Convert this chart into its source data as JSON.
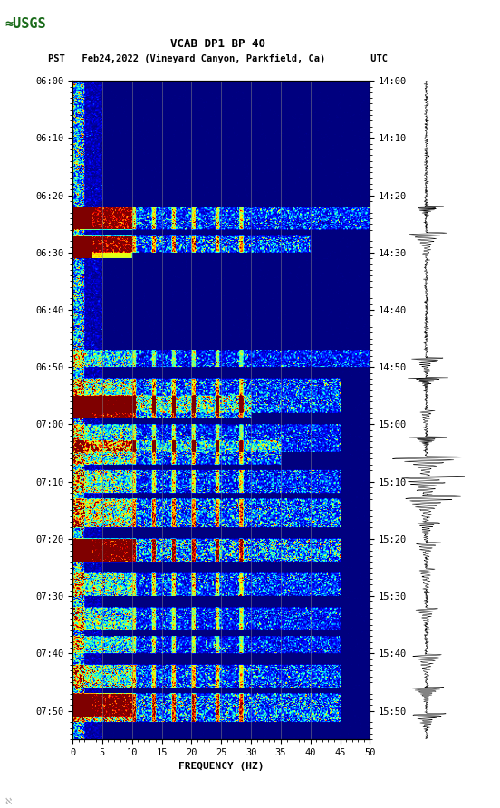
{
  "title_line1": "VCAB DP1 BP 40",
  "title_line2": "PST   Feb24,2022 (Vineyard Canyon, Parkfield, Ca)        UTC",
  "xlabel": "FREQUENCY (HZ)",
  "freq_min": 0,
  "freq_max": 50,
  "pst_ticks": [
    "06:00",
    "06:10",
    "06:20",
    "06:30",
    "06:40",
    "06:50",
    "07:00",
    "07:10",
    "07:20",
    "07:30",
    "07:40",
    "07:50"
  ],
  "utc_ticks": [
    "14:00",
    "14:10",
    "14:20",
    "14:30",
    "14:40",
    "14:50",
    "15:00",
    "15:10",
    "15:20",
    "15:30",
    "15:40",
    "15:50"
  ],
  "freq_ticks": [
    0,
    5,
    10,
    15,
    20,
    25,
    30,
    35,
    40,
    45,
    50
  ],
  "bg_color": "#ffffff",
  "colormap": "jet",
  "fig_width": 5.52,
  "fig_height": 8.92,
  "dpi": 100,
  "total_minutes": 115,
  "tick_interval_minutes": 10,
  "activity_bands": [
    {
      "t_min": 22,
      "t_max": 26,
      "f_max": 50,
      "intensity": 2.5
    },
    {
      "t_min": 27,
      "t_max": 30,
      "f_max": 40,
      "intensity": 3.0
    },
    {
      "t_min": 47,
      "t_max": 50,
      "f_max": 50,
      "intensity": 2.0
    },
    {
      "t_min": 52,
      "t_max": 58,
      "f_max": 45,
      "intensity": 2.8
    },
    {
      "t_min": 55,
      "t_max": 59,
      "f_max": 30,
      "intensity": 3.5
    },
    {
      "t_min": 60,
      "t_max": 65,
      "f_max": 45,
      "intensity": 2.2
    },
    {
      "t_min": 63,
      "t_max": 67,
      "f_max": 35,
      "intensity": 2.8
    },
    {
      "t_min": 68,
      "t_max": 72,
      "f_max": 45,
      "intensity": 2.5
    },
    {
      "t_min": 73,
      "t_max": 78,
      "f_max": 45,
      "intensity": 3.2
    },
    {
      "t_min": 80,
      "t_max": 84,
      "f_max": 45,
      "intensity": 4.0
    },
    {
      "t_min": 86,
      "t_max": 90,
      "f_max": 45,
      "intensity": 2.5
    },
    {
      "t_min": 92,
      "t_max": 96,
      "f_max": 45,
      "intensity": 2.3
    },
    {
      "t_min": 97,
      "t_max": 100,
      "f_max": 45,
      "intensity": 2.2
    },
    {
      "t_min": 102,
      "t_max": 106,
      "f_max": 45,
      "intensity": 2.8
    },
    {
      "t_min": 107,
      "t_max": 112,
      "f_max": 45,
      "intensity": 3.5
    }
  ],
  "strong_red_times": [
    22,
    27,
    55,
    80,
    107
  ],
  "seis_events": [
    0.19,
    0.23,
    0.42,
    0.45,
    0.5,
    0.54,
    0.57,
    0.6,
    0.63,
    0.67,
    0.7,
    0.74,
    0.8,
    0.87,
    0.92,
    0.96
  ]
}
